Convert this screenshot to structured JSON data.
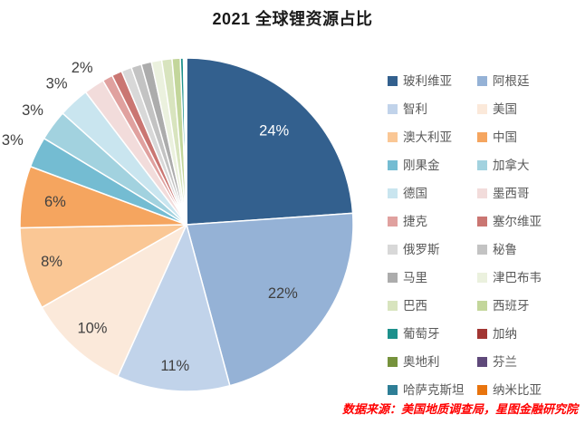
{
  "title": "2021 全球锂资源占比",
  "source": "数据来源：美国地质调查局，星图金融研究院",
  "colors": {
    "background": "#ffffff",
    "title_text": "#1a1a1a",
    "source_text": "#ff0000",
    "slice_label_text": "#404040",
    "legend_text": "#595959"
  },
  "chart_data": {
    "type": "pie",
    "title": "2021 全球锂资源占比",
    "units": "percent",
    "legend_position": "right",
    "legend_columns": 2,
    "start_angle": "12-o'clock",
    "direction": "clockwise",
    "slices": [
      {
        "name": "玻利维亚",
        "value": 24,
        "color": "#33608E",
        "label": "24%",
        "label_pos": "inside",
        "label_r": 0.77,
        "label_color": "#ffffff"
      },
      {
        "name": "阿根廷",
        "value": 22,
        "color": "#95B2D6",
        "label": "22%",
        "label_pos": "inside",
        "label_r": 0.71,
        "label_color": "#404040"
      },
      {
        "name": "智利",
        "value": 11,
        "color": "#C1D3EA",
        "label": "11%",
        "label_pos": "inside",
        "label_r": 0.85,
        "label_color": "#404040"
      },
      {
        "name": "美国",
        "value": 10,
        "color": "#FBE9DA",
        "label": "10%",
        "label_pos": "inside",
        "label_r": 0.84,
        "label_color": "#404040"
      },
      {
        "name": "澳大利亚",
        "value": 8,
        "color": "#FAC795",
        "label": "8%",
        "label_pos": "inside",
        "label_r": 0.84,
        "label_color": "#404040"
      },
      {
        "name": "中国",
        "value": 6,
        "color": "#F5A55F",
        "label": "6%",
        "label_pos": "inside",
        "label_r": 0.8,
        "label_color": "#404040"
      },
      {
        "name": "刚果金",
        "value": 3,
        "color": "#74BCD2",
        "label": "3%",
        "label_pos": "outside",
        "label_r": 1.16,
        "label_color": "#404040"
      },
      {
        "name": "加拿大",
        "value": 3,
        "color": "#A2D2DF",
        "label": "3%",
        "label_pos": "outside",
        "label_r": 1.15,
        "label_color": "#404040"
      },
      {
        "name": "德国",
        "value": 3,
        "color": "#C9E5EF",
        "label": "3%",
        "label_pos": "outside",
        "label_r": 1.15,
        "label_color": "#404040"
      },
      {
        "name": "墨西哥",
        "value": 2,
        "color": "#F2DCDB",
        "label": "2%",
        "label_pos": "outside",
        "label_r": 1.13,
        "label_color": "#404040"
      },
      {
        "name": "捷克",
        "value": 1,
        "color": "#E0A19F",
        "label": null
      },
      {
        "name": "塞尔维亚",
        "value": 1,
        "color": "#CA7672",
        "label": null
      },
      {
        "name": "俄罗斯",
        "value": 1,
        "color": "#D8D8D8",
        "label": null
      },
      {
        "name": "秘鲁",
        "value": 1,
        "color": "#C3C3C3",
        "label": null
      },
      {
        "name": "马里",
        "value": 1,
        "color": "#ACACAC",
        "label": null
      },
      {
        "name": "津巴布韦",
        "value": 1,
        "color": "#EBF1DE",
        "label": null
      },
      {
        "name": "巴西",
        "value": 1,
        "color": "#D8E4BE",
        "label": null
      },
      {
        "name": "西班牙",
        "value": 0.8,
        "color": "#C3D69B",
        "label": null
      },
      {
        "name": "葡萄牙",
        "value": 0.3,
        "color": "#1D908C",
        "label": null
      },
      {
        "name": "加纳",
        "value": 0.06,
        "color": "#A23532",
        "label": null
      },
      {
        "name": "奥地利",
        "value": 0.06,
        "color": "#76923C",
        "label": null
      },
      {
        "name": "芬兰",
        "value": 0.06,
        "color": "#5F497A",
        "label": null
      },
      {
        "name": "哈萨克斯坦",
        "value": 0.06,
        "color": "#2E7E96",
        "label": null
      },
      {
        "name": "纳米比亚",
        "value": 0.06,
        "color": "#E8740E",
        "label": null
      }
    ]
  }
}
